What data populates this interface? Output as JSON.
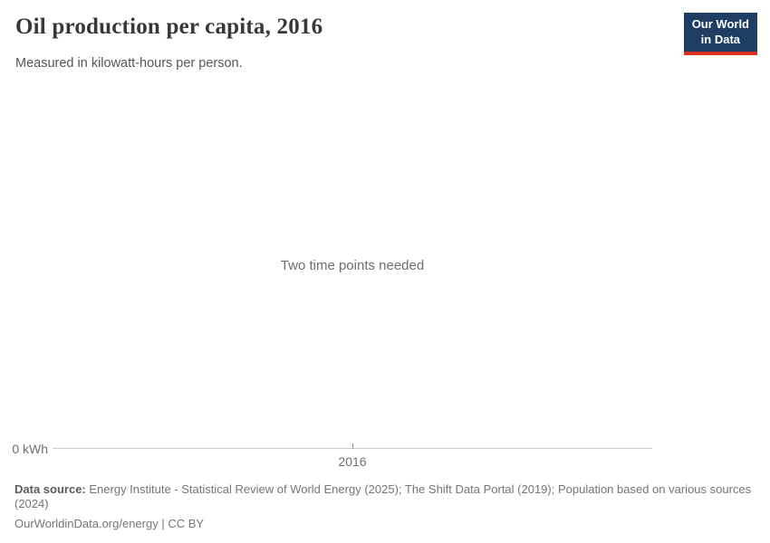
{
  "header": {
    "title": "Oil production per capita, 2016",
    "subtitle": "Measured in kilowatt-hours per person.",
    "logo": {
      "line1": "Our World",
      "line2": "in Data"
    }
  },
  "chart_data": {
    "type": "line",
    "title": "Oil production per capita, 2016",
    "subtitle": "Measured in kilowatt-hours per person.",
    "x": [],
    "series": [],
    "message": "Two time points needed",
    "x_ticks": [
      "2016"
    ],
    "y_ticks": [
      "0 kWh"
    ],
    "xlabel": "",
    "ylabel": "kilowatt-hours per person",
    "grid": false,
    "legend": false
  },
  "footer": {
    "datasource_label": "Data source:",
    "datasource_text": "Energy Institute - Statistical Review of World Energy (2025); The Shift Data Portal (2019); Population based on various sources (2024)",
    "link": "OurWorldinData.org/energy | CC BY"
  },
  "colors": {
    "logo_bg": "#1d3d63",
    "logo_accent": "#dc3020",
    "axis_line": "#cfcfcf",
    "tick_color": "#999999",
    "text_muted": "#6e6e6e"
  }
}
